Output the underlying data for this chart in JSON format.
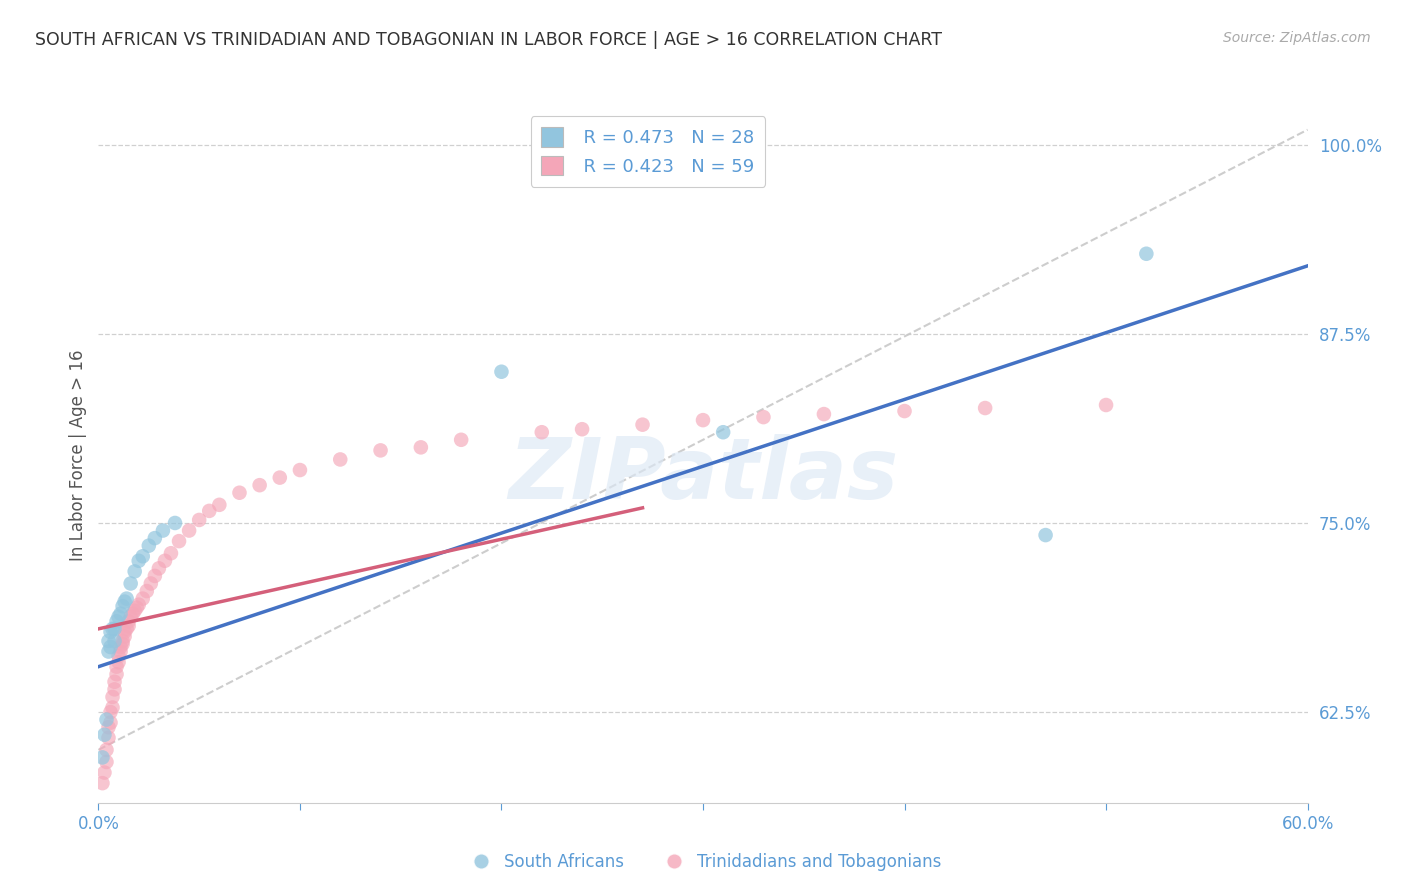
{
  "title": "SOUTH AFRICAN VS TRINIDADIAN AND TOBAGONIAN IN LABOR FORCE | AGE > 16 CORRELATION CHART",
  "source": "Source: ZipAtlas.com",
  "ylabel": "In Labor Force | Age > 16",
  "legend_labels": [
    "South Africans",
    "Trinidadians and Tobagonians"
  ],
  "legend_r_blue": "R = 0.473",
  "legend_n_blue": "N = 28",
  "legend_r_pink": "R = 0.423",
  "legend_n_pink": "N = 59",
  "xmin": 0.0,
  "xmax": 0.6,
  "ymin": 0.565,
  "ymax": 1.025,
  "yticks": [
    0.625,
    0.75,
    0.875,
    1.0
  ],
  "ytick_labels": [
    "62.5%",
    "75.0%",
    "87.5%",
    "100.0%"
  ],
  "xticks": [
    0.0,
    0.1,
    0.2,
    0.3,
    0.4,
    0.5,
    0.6
  ],
  "xtick_labels": [
    "0.0%",
    "",
    "",
    "",
    "",
    "",
    "60.0%"
  ],
  "blue_color": "#92c5de",
  "pink_color": "#f4a6b8",
  "blue_line_color": "#4472c4",
  "pink_line_color": "#d45f7a",
  "ref_line_color": "#c8c8c8",
  "axis_color": "#5b9bd5",
  "watermark": "ZIPatlas",
  "blue_x": [
    0.002,
    0.003,
    0.004,
    0.005,
    0.005,
    0.006,
    0.006,
    0.007,
    0.008,
    0.008,
    0.009,
    0.01,
    0.011,
    0.012,
    0.013,
    0.014,
    0.016,
    0.018,
    0.02,
    0.022,
    0.025,
    0.028,
    0.032,
    0.038,
    0.2,
    0.31,
    0.47,
    0.52
  ],
  "blue_y": [
    0.595,
    0.61,
    0.62,
    0.665,
    0.672,
    0.668,
    0.678,
    0.68,
    0.672,
    0.68,
    0.685,
    0.688,
    0.69,
    0.695,
    0.698,
    0.7,
    0.71,
    0.718,
    0.725,
    0.728,
    0.735,
    0.74,
    0.745,
    0.75,
    0.85,
    0.81,
    0.742,
    0.928
  ],
  "pink_x": [
    0.002,
    0.003,
    0.004,
    0.004,
    0.005,
    0.005,
    0.006,
    0.006,
    0.007,
    0.007,
    0.008,
    0.008,
    0.009,
    0.009,
    0.01,
    0.01,
    0.011,
    0.011,
    0.012,
    0.012,
    0.013,
    0.013,
    0.014,
    0.015,
    0.015,
    0.016,
    0.017,
    0.018,
    0.019,
    0.02,
    0.022,
    0.024,
    0.026,
    0.028,
    0.03,
    0.033,
    0.036,
    0.04,
    0.045,
    0.05,
    0.055,
    0.06,
    0.07,
    0.08,
    0.09,
    0.1,
    0.12,
    0.14,
    0.16,
    0.18,
    0.22,
    0.24,
    0.27,
    0.3,
    0.33,
    0.36,
    0.4,
    0.44,
    0.5
  ],
  "pink_y": [
    0.578,
    0.585,
    0.592,
    0.6,
    0.608,
    0.615,
    0.618,
    0.625,
    0.628,
    0.635,
    0.64,
    0.645,
    0.65,
    0.655,
    0.658,
    0.662,
    0.665,
    0.668,
    0.67,
    0.672,
    0.675,
    0.678,
    0.68,
    0.682,
    0.685,
    0.688,
    0.69,
    0.692,
    0.694,
    0.696,
    0.7,
    0.705,
    0.71,
    0.715,
    0.72,
    0.725,
    0.73,
    0.738,
    0.745,
    0.752,
    0.758,
    0.762,
    0.77,
    0.775,
    0.78,
    0.785,
    0.792,
    0.798,
    0.8,
    0.805,
    0.81,
    0.812,
    0.815,
    0.818,
    0.82,
    0.822,
    0.824,
    0.826,
    0.828
  ],
  "blue_line_x0": 0.0,
  "blue_line_y0": 0.655,
  "blue_line_x1": 0.6,
  "blue_line_y1": 0.92,
  "pink_line_x0": 0.0,
  "pink_line_y0": 0.68,
  "pink_line_x1": 0.27,
  "pink_line_y1": 0.76,
  "ref_line_x0": 0.0,
  "ref_line_y0": 0.6,
  "ref_line_x1": 0.6,
  "ref_line_y1": 1.01
}
